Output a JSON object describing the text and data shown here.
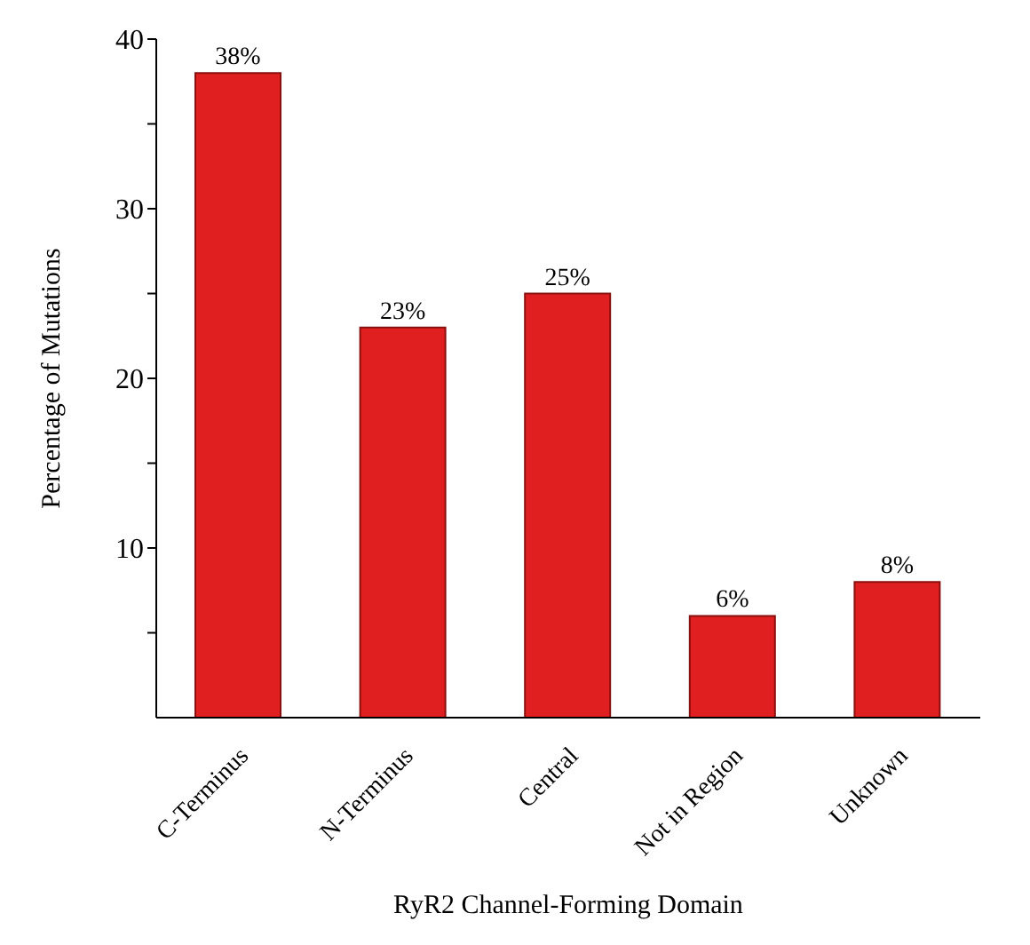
{
  "chart_data": {
    "type": "bar",
    "xlabel": "RyR2 Channel-Forming Domain",
    "ylabel": "Percentage of Mutations",
    "categories": [
      "C-Terminus",
      "N-Terminus",
      "Central",
      "Not in Region",
      "Unknown"
    ],
    "values": [
      38,
      23,
      25,
      6,
      8
    ],
    "value_labels": [
      "38%",
      "23%",
      "25%",
      "6%",
      "8%"
    ],
    "color": "#e02020",
    "ylim": [
      0,
      40
    ],
    "yticks": [
      {
        "value": 5,
        "label": null
      },
      10,
      {
        "value": 15,
        "label": null
      },
      20,
      {
        "value": 25,
        "label": null
      },
      30,
      {
        "value": 35,
        "label": null
      },
      40
    ],
    "grid": false,
    "legend": false
  }
}
